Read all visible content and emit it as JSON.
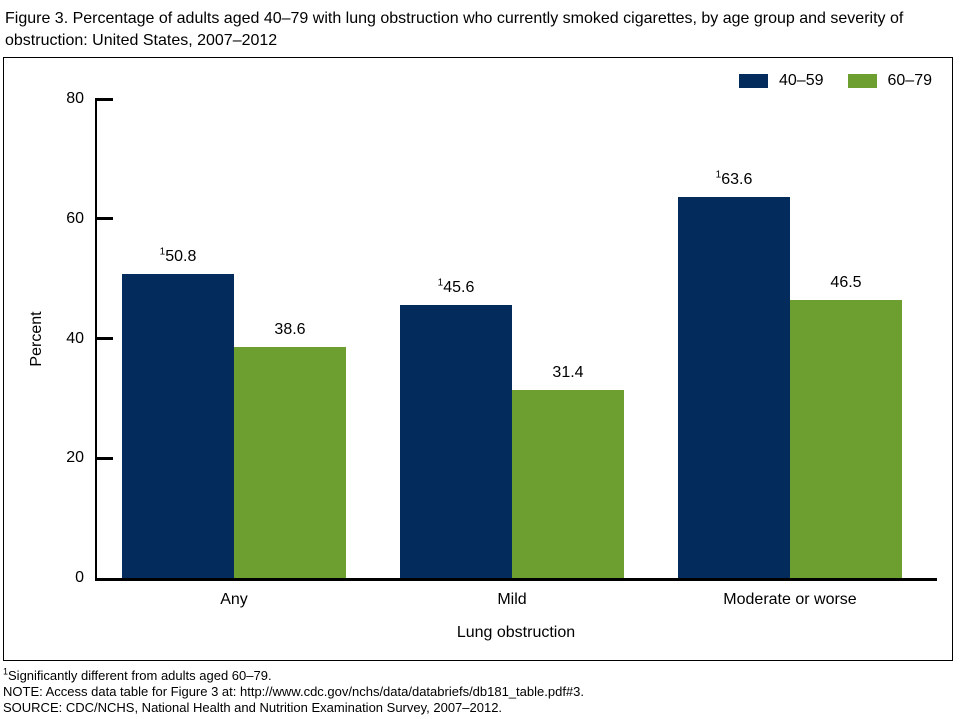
{
  "title": "Figure 3. Percentage of adults aged 40–79 with lung obstruction who currently smoked cigarettes, by age group and severity of obstruction: United States, 2007–2012",
  "chart_data": {
    "type": "bar",
    "title": "Figure 3. Percentage of adults aged 40–79 with lung obstruction who currently smoked cigarettes, by age group and severity of obstruction: United States, 2007–2012",
    "categories": [
      "Any",
      "Mild",
      "Moderate or worse"
    ],
    "series": [
      {
        "name": "40–59",
        "color": "#032b5c",
        "values": [
          50.8,
          45.6,
          63.6
        ],
        "value_markers": [
          "1",
          "1",
          "1"
        ]
      },
      {
        "name": "60–79",
        "color": "#6c9e30",
        "values": [
          38.6,
          31.4,
          46.5
        ],
        "value_markers": [
          "",
          "",
          ""
        ]
      }
    ],
    "xlabel": "Lung obstruction",
    "ylabel": "Percent",
    "ylim": [
      0,
      80
    ],
    "yticks": [
      0,
      20,
      40,
      60,
      80
    ],
    "grid": false,
    "legend_position": "top-right",
    "bar_value_labels": true
  },
  "footnotes": [
    {
      "sup": "1",
      "text": "Significantly different from adults aged 60–79."
    },
    {
      "sup": "",
      "text": "NOTE: Access data table for Figure 3 at: http://www.cdc.gov/nchs/data/databriefs/db181_table.pdf#3."
    },
    {
      "sup": "",
      "text": "SOURCE: CDC/NCHS, National Health and Nutrition Examination Survey, 2007–2012."
    }
  ]
}
